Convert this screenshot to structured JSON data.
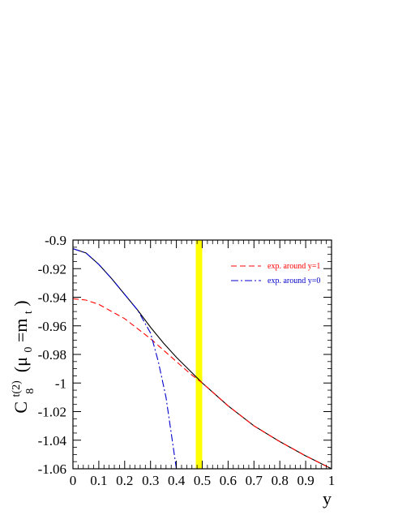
{
  "chart_data": {
    "type": "line",
    "xlabel": "y",
    "ylabel": {
      "main": "C",
      "sub": "8",
      "sup": "t(2)",
      "arg_open": "(μ",
      "arg_sub": "0",
      "arg_mid": "=m",
      "arg_sub2": "t",
      "arg_close": ")"
    },
    "xlim": [
      0,
      1
    ],
    "ylim": [
      -1.06,
      -0.9
    ],
    "x_ticks": [
      "0",
      "0.1",
      "0.2",
      "0.3",
      "0.4",
      "0.5",
      "0.6",
      "0.7",
      "0.8",
      "0.9",
      "1"
    ],
    "y_ticks": [
      "-0.9",
      "-0.92",
      "-0.94",
      "-0.96",
      "-0.98",
      "-1",
      "-1.02",
      "-1.04",
      "-1.06"
    ],
    "x_tick_values": [
      0,
      0.1,
      0.2,
      0.3,
      0.4,
      0.5,
      0.6,
      0.7,
      0.8,
      0.9,
      1
    ],
    "y_tick_values": [
      -0.9,
      -0.92,
      -0.94,
      -0.96,
      -0.98,
      -1,
      -1.02,
      -1.04,
      -1.06
    ],
    "band": {
      "x": [
        0.475,
        0.5
      ],
      "color": "#ffff00"
    },
    "series": [
      {
        "key": "exact",
        "color": "#000000",
        "dash": "",
        "x": [
          0,
          0.05,
          0.1,
          0.15,
          0.2,
          0.25,
          0.3,
          0.35,
          0.4,
          0.45,
          0.5,
          0.55,
          0.6,
          0.7,
          0.8,
          0.9,
          1.0
        ],
        "y": [
          -0.906,
          -0.909,
          -0.917,
          -0.927,
          -0.938,
          -0.949,
          -0.961,
          -0.972,
          -0.982,
          -0.991,
          -1.0,
          -1.008,
          -1.016,
          -1.03,
          -1.041,
          -1.051,
          -1.06
        ]
      },
      {
        "name": "exp. around y=1",
        "color": "#ff0000",
        "dash": "7,4",
        "x": [
          0,
          0.05,
          0.1,
          0.15,
          0.2,
          0.25,
          0.3,
          0.35,
          0.4,
          0.45,
          0.5,
          0.55,
          0.6,
          0.7,
          0.8,
          0.9,
          1.0
        ],
        "y": [
          -0.941,
          -0.942,
          -0.945,
          -0.95,
          -0.955,
          -0.962,
          -0.969,
          -0.977,
          -0.985,
          -0.993,
          -1.0,
          -1.008,
          -1.016,
          -1.03,
          -1.041,
          -1.051,
          -1.06
        ]
      },
      {
        "name": "exp. around y=0",
        "color": "#0000cc",
        "dash": "9,3,2,3",
        "x": [
          0,
          0.05,
          0.1,
          0.15,
          0.2,
          0.25,
          0.3,
          0.33,
          0.36,
          0.38,
          0.4
        ],
        "y": [
          -0.906,
          -0.909,
          -0.917,
          -0.927,
          -0.938,
          -0.949,
          -0.965,
          -0.985,
          -1.01,
          -1.035,
          -1.06
        ]
      }
    ],
    "legend_placement": "top-right"
  }
}
